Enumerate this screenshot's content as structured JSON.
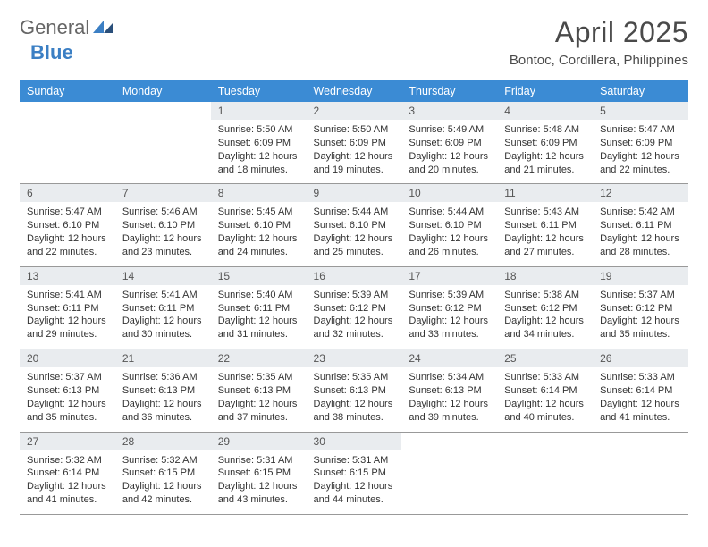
{
  "brand": {
    "part1": "General",
    "part2": "Blue"
  },
  "title": "April 2025",
  "location": "Bontoc, Cordillera, Philippines",
  "colors": {
    "header_bg": "#3b8bd4",
    "header_text": "#ffffff",
    "daynum_bg": "#e9ecef",
    "text": "#333333",
    "border": "#999999",
    "brand_accent": "#3b7fc4",
    "page_bg": "#ffffff"
  },
  "fonts": {
    "title_size_pt": 24,
    "location_size_pt": 11,
    "th_size_pt": 9.5,
    "cell_size_pt": 8.2
  },
  "weekdays": [
    "Sunday",
    "Monday",
    "Tuesday",
    "Wednesday",
    "Thursday",
    "Friday",
    "Saturday"
  ],
  "weeks": [
    [
      {
        "n": "",
        "empty": true
      },
      {
        "n": "",
        "empty": true
      },
      {
        "n": "1",
        "sr": "5:50 AM",
        "ss": "6:09 PM",
        "dl": "12 hours and 18 minutes."
      },
      {
        "n": "2",
        "sr": "5:50 AM",
        "ss": "6:09 PM",
        "dl": "12 hours and 19 minutes."
      },
      {
        "n": "3",
        "sr": "5:49 AM",
        "ss": "6:09 PM",
        "dl": "12 hours and 20 minutes."
      },
      {
        "n": "4",
        "sr": "5:48 AM",
        "ss": "6:09 PM",
        "dl": "12 hours and 21 minutes."
      },
      {
        "n": "5",
        "sr": "5:47 AM",
        "ss": "6:09 PM",
        "dl": "12 hours and 22 minutes."
      }
    ],
    [
      {
        "n": "6",
        "sr": "5:47 AM",
        "ss": "6:10 PM",
        "dl": "12 hours and 22 minutes."
      },
      {
        "n": "7",
        "sr": "5:46 AM",
        "ss": "6:10 PM",
        "dl": "12 hours and 23 minutes."
      },
      {
        "n": "8",
        "sr": "5:45 AM",
        "ss": "6:10 PM",
        "dl": "12 hours and 24 minutes."
      },
      {
        "n": "9",
        "sr": "5:44 AM",
        "ss": "6:10 PM",
        "dl": "12 hours and 25 minutes."
      },
      {
        "n": "10",
        "sr": "5:44 AM",
        "ss": "6:10 PM",
        "dl": "12 hours and 26 minutes."
      },
      {
        "n": "11",
        "sr": "5:43 AM",
        "ss": "6:11 PM",
        "dl": "12 hours and 27 minutes."
      },
      {
        "n": "12",
        "sr": "5:42 AM",
        "ss": "6:11 PM",
        "dl": "12 hours and 28 minutes."
      }
    ],
    [
      {
        "n": "13",
        "sr": "5:41 AM",
        "ss": "6:11 PM",
        "dl": "12 hours and 29 minutes."
      },
      {
        "n": "14",
        "sr": "5:41 AM",
        "ss": "6:11 PM",
        "dl": "12 hours and 30 minutes."
      },
      {
        "n": "15",
        "sr": "5:40 AM",
        "ss": "6:11 PM",
        "dl": "12 hours and 31 minutes."
      },
      {
        "n": "16",
        "sr": "5:39 AM",
        "ss": "6:12 PM",
        "dl": "12 hours and 32 minutes."
      },
      {
        "n": "17",
        "sr": "5:39 AM",
        "ss": "6:12 PM",
        "dl": "12 hours and 33 minutes."
      },
      {
        "n": "18",
        "sr": "5:38 AM",
        "ss": "6:12 PM",
        "dl": "12 hours and 34 minutes."
      },
      {
        "n": "19",
        "sr": "5:37 AM",
        "ss": "6:12 PM",
        "dl": "12 hours and 35 minutes."
      }
    ],
    [
      {
        "n": "20",
        "sr": "5:37 AM",
        "ss": "6:13 PM",
        "dl": "12 hours and 35 minutes."
      },
      {
        "n": "21",
        "sr": "5:36 AM",
        "ss": "6:13 PM",
        "dl": "12 hours and 36 minutes."
      },
      {
        "n": "22",
        "sr": "5:35 AM",
        "ss": "6:13 PM",
        "dl": "12 hours and 37 minutes."
      },
      {
        "n": "23",
        "sr": "5:35 AM",
        "ss": "6:13 PM",
        "dl": "12 hours and 38 minutes."
      },
      {
        "n": "24",
        "sr": "5:34 AM",
        "ss": "6:13 PM",
        "dl": "12 hours and 39 minutes."
      },
      {
        "n": "25",
        "sr": "5:33 AM",
        "ss": "6:14 PM",
        "dl": "12 hours and 40 minutes."
      },
      {
        "n": "26",
        "sr": "5:33 AM",
        "ss": "6:14 PM",
        "dl": "12 hours and 41 minutes."
      }
    ],
    [
      {
        "n": "27",
        "sr": "5:32 AM",
        "ss": "6:14 PM",
        "dl": "12 hours and 41 minutes."
      },
      {
        "n": "28",
        "sr": "5:32 AM",
        "ss": "6:15 PM",
        "dl": "12 hours and 42 minutes."
      },
      {
        "n": "29",
        "sr": "5:31 AM",
        "ss": "6:15 PM",
        "dl": "12 hours and 43 minutes."
      },
      {
        "n": "30",
        "sr": "5:31 AM",
        "ss": "6:15 PM",
        "dl": "12 hours and 44 minutes."
      },
      {
        "n": "",
        "empty": true
      },
      {
        "n": "",
        "empty": true
      },
      {
        "n": "",
        "empty": true
      }
    ]
  ],
  "labels": {
    "sunrise": "Sunrise:",
    "sunset": "Sunset:",
    "daylight": "Daylight:"
  }
}
